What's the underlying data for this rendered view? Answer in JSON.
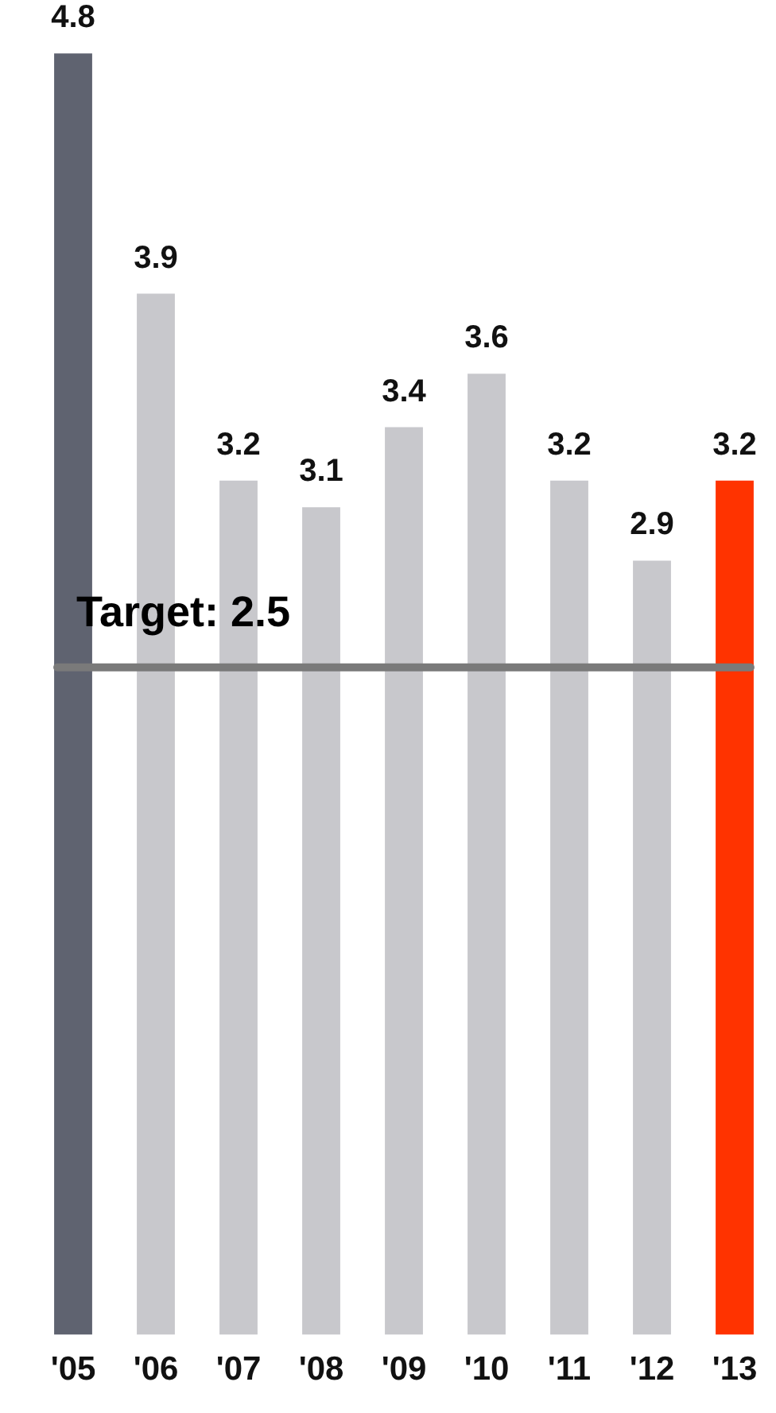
{
  "chart_data": {
    "type": "bar",
    "categories": [
      "'05",
      "'06",
      "'07",
      "'08",
      "'09",
      "'10",
      "'11",
      "'12",
      "'13"
    ],
    "values": [
      4.8,
      3.9,
      3.2,
      3.1,
      3.4,
      3.6,
      3.2,
      2.9,
      3.2
    ],
    "colors": [
      "#5f6370",
      "#c8c8cc",
      "#c8c8cc",
      "#c8c8cc",
      "#c8c8cc",
      "#c8c8cc",
      "#c8c8cc",
      "#c8c8cc",
      "#ff3300"
    ],
    "data_labels": true,
    "ref_lines": [
      {
        "axis": "y",
        "value": 2.5,
        "label": "Target: 2.5",
        "color": "#7a7a7a"
      }
    ],
    "legend": false,
    "grid": false
  }
}
